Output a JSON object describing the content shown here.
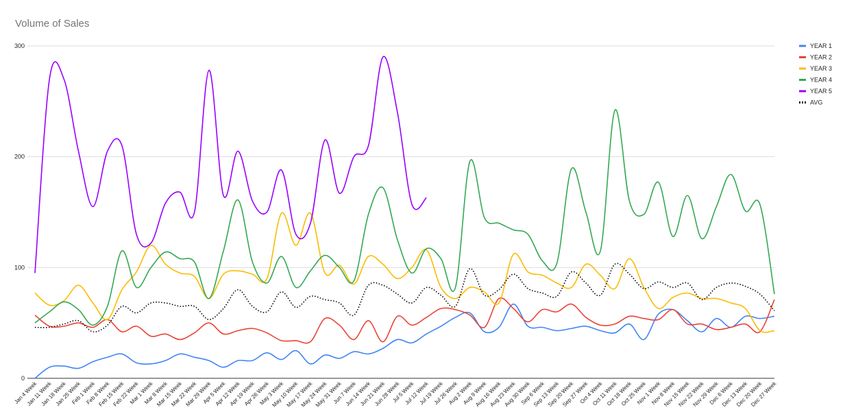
{
  "chart_data": {
    "type": "line",
    "title": "Volume of Sales",
    "categories": [
      "Jan 4 Week",
      "Jan 11 Week",
      "Jan 18 Week",
      "Jan 25 Week",
      "Feb 1 Week",
      "Feb 8 Week",
      "Feb 15 Week",
      "Feb 22 Week",
      "Mar 1 Week",
      "Mar 8 Week",
      "Mar 15 Week",
      "Mar 22 Week",
      "Mar 29 Week",
      "Apr 5 Week",
      "Apr 12 Week",
      "Apr 19 Week",
      "Apr 26 Week",
      "May 3 Week",
      "May 10 Week",
      "May 17 Week",
      "May 24 Week",
      "May 31 Week",
      "Jun 7 Week",
      "Jun 14 Week",
      "Jun 21 Week",
      "Jun 28 Week",
      "Jul 5 Week",
      "Jul 12 Week",
      "Jul 19 Week",
      "Jul 26 Week",
      "Aug 2 Week",
      "Aug 9 Week",
      "Aug 16 Week",
      "Aug 23 Week",
      "Aug 30 Week",
      "Sep 6 Week",
      "Sep 13 Week",
      "Sep 20 Week",
      "Sep 27 Week",
      "Oct 4 Week",
      "Oct 11 Week",
      "Oct 18 Week",
      "Oct 25 Week",
      "Nov 1 Week",
      "Nov 8 Week",
      "Nov 15 Week",
      "Nov 22 Week",
      "Nov 29 Week",
      "Dec 6 Week",
      "Dec 13 Week",
      "Dec 20 Week",
      "Dec 27 Week"
    ],
    "series": [
      {
        "name": "YEAR 1",
        "color": "#4285f4",
        "values": [
          0,
          10,
          11,
          9,
          15,
          19,
          22,
          14,
          13,
          16,
          22,
          19,
          16,
          10,
          16,
          16,
          23,
          17,
          25,
          13,
          21,
          18,
          24,
          22,
          27,
          35,
          32,
          40,
          47,
          55,
          59,
          42,
          46,
          67,
          47,
          46,
          43,
          45,
          47,
          43,
          41,
          49,
          35,
          58,
          62,
          52,
          42,
          54,
          46,
          56,
          54,
          56
        ]
      },
      {
        "name": "YEAR 2",
        "color": "#ea4335",
        "values": [
          57,
          47,
          47,
          50,
          46,
          53,
          42,
          47,
          38,
          40,
          35,
          41,
          50,
          40,
          43,
          45,
          41,
          34,
          34,
          33,
          54,
          48,
          35,
          52,
          33,
          56,
          48,
          55,
          63,
          62,
          57,
          46,
          72,
          63,
          51,
          62,
          60,
          67,
          55,
          48,
          49,
          56,
          54,
          53,
          62,
          49,
          49,
          44,
          46,
          49,
          42,
          71
        ]
      },
      {
        "name": "YEAR 3",
        "color": "#fbbc04",
        "values": [
          77,
          66,
          70,
          84,
          68,
          53,
          80,
          96,
          120,
          103,
          95,
          92,
          72,
          94,
          97,
          94,
          90,
          149,
          120,
          149,
          95,
          102,
          85,
          110,
          103,
          90,
          100,
          116,
          82,
          72,
          82,
          78,
          68,
          112,
          96,
          93,
          86,
          82,
          103,
          93,
          81,
          108,
          82,
          63,
          73,
          77,
          72,
          72,
          68,
          63,
          43,
          43
        ]
      },
      {
        "name": "YEAR 4",
        "color": "#34a853",
        "values": [
          50,
          60,
          69,
          62,
          48,
          65,
          115,
          82,
          100,
          114,
          108,
          105,
          72,
          115,
          161,
          105,
          86,
          110,
          82,
          97,
          111,
          100,
          88,
          148,
          172,
          125,
          95,
          117,
          108,
          82,
          196,
          145,
          140,
          134,
          130,
          106,
          104,
          189,
          150,
          115,
          242,
          160,
          148,
          177,
          128,
          165,
          126,
          155,
          184,
          151,
          157,
          76
        ]
      },
      {
        "name": "YEAR 5",
        "color": "#9900ff",
        "values": [
          95,
          270,
          270,
          205,
          155,
          205,
          210,
          130,
          122,
          158,
          168,
          150,
          278,
          165,
          205,
          160,
          150,
          188,
          130,
          140,
          215,
          167,
          200,
          210,
          290,
          240,
          157,
          163,
          null,
          null,
          null,
          null,
          null,
          null,
          null,
          null,
          null,
          null,
          null,
          null,
          null,
          null,
          null,
          null,
          null,
          null,
          null,
          null,
          null,
          null,
          null,
          null
        ]
      },
      {
        "name": "AVG",
        "color": "#000000",
        "line_style": "dotted",
        "values": [
          46,
          46,
          49,
          52,
          42,
          48,
          65,
          59,
          68,
          68,
          65,
          65,
          53,
          63,
          80,
          65,
          60,
          78,
          64,
          74,
          71,
          68,
          57,
          84,
          84,
          76,
          68,
          82,
          75,
          65,
          99,
          75,
          80,
          94,
          81,
          77,
          74,
          96,
          86,
          75,
          103,
          94,
          81,
          87,
          82,
          86,
          71,
          82,
          86,
          83,
          76,
          61
        ]
      }
    ],
    "ylim": [
      0,
      300
    ],
    "yticks": [
      0,
      100,
      200,
      300
    ],
    "grid": true,
    "legend": "right"
  }
}
